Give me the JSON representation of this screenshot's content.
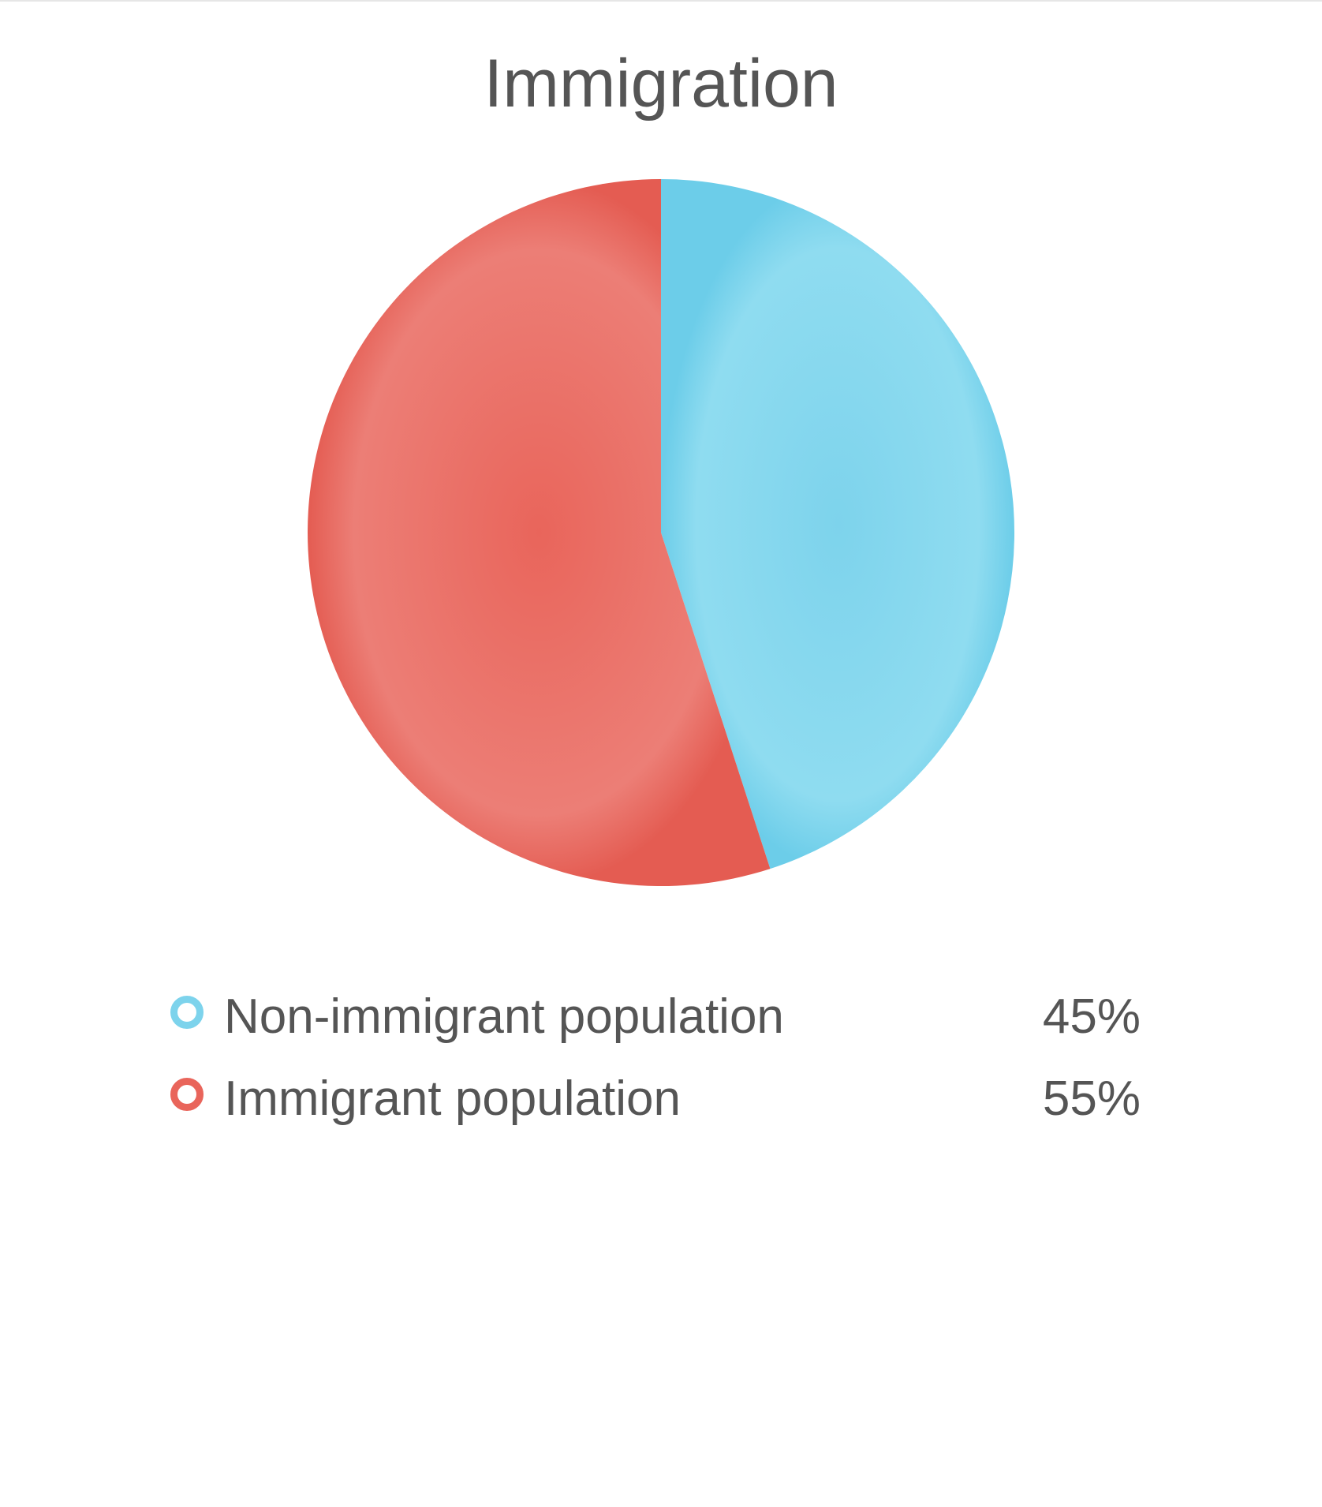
{
  "chart_data": {
    "type": "pie",
    "title": "Immigration",
    "series": [
      {
        "name": "Non-immigrant population",
        "value": 45,
        "label": "45%",
        "color": "#7dd3ec"
      },
      {
        "name": "Immigrant population",
        "value": 55,
        "label": "55%",
        "color": "#e9655b"
      }
    ],
    "legend_position": "bottom"
  }
}
